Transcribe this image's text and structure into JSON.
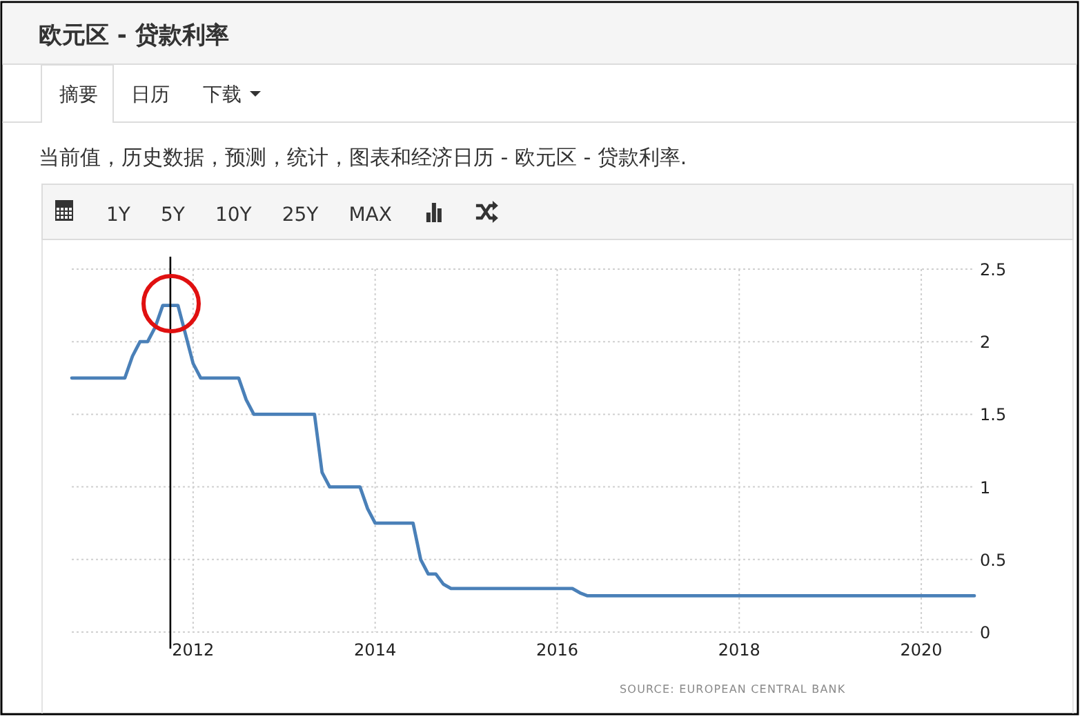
{
  "chart_data": {
    "type": "line",
    "title": "欧元区 - 贷款利率",
    "subtitle": "当前值，历史数据，预测，统计，图表和经济日历 - 欧元区 - 贷款利率.",
    "annotations": [
      "摘要",
      "日历",
      "下载",
      "1Y",
      "5Y",
      "10Y",
      "25Y",
      "MAX",
      "SOURCE: EUROPEAN CENTRAL BANK"
    ],
    "x": [
      "2010-09",
      "2011-04",
      "2011-05",
      "2011-06",
      "2011-07",
      "2011-08",
      "2011-09",
      "2011-11",
      "2011-12",
      "2012-01",
      "2012-02",
      "2012-07",
      "2012-08",
      "2012-09",
      "2013-05",
      "2013-06",
      "2013-07",
      "2013-11",
      "2013-12",
      "2014-01",
      "2014-06",
      "2014-07",
      "2014-08",
      "2014-09",
      "2014-10",
      "2014-11",
      "2016-03",
      "2016-04",
      "2016-05",
      "2020-08"
    ],
    "series": [
      {
        "color": "#4a80b8",
        "values": [
          1.75,
          1.75,
          1.9,
          2.0,
          2.0,
          2.1,
          2.25,
          2.25,
          2.05,
          1.85,
          1.75,
          1.75,
          1.6,
          1.5,
          1.5,
          1.1,
          1.0,
          1.0,
          0.85,
          0.75,
          0.75,
          0.5,
          0.4,
          0.4,
          0.33,
          0.3,
          0.3,
          0.27,
          0.25,
          0.25
        ]
      }
    ],
    "xlim": [
      "2010-09",
      "2020-08"
    ],
    "ylim": [
      0,
      2.5
    ],
    "xticks": [
      "2012",
      "2014",
      "2016",
      "2018",
      "2020"
    ],
    "yticks": [
      0,
      0.5,
      1,
      1.5,
      2,
      2.5
    ],
    "ref_lines": [
      {
        "axis": "x",
        "value": "2011-10",
        "color": "#000000"
      }
    ],
    "grid": true
  }
}
